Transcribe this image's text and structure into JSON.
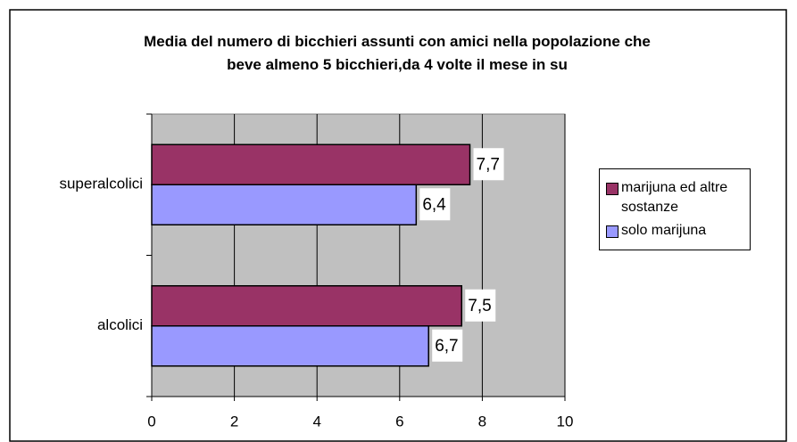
{
  "chart_data": {
    "type": "hbar",
    "title": "Media del numero di bicchieri assunti con amici nella popolazione che\nbeve almeno 5 bicchieri,da 4 volte il mese in su",
    "categories": [
      "superalcolici",
      "alcolici"
    ],
    "series": [
      {
        "name": "marijuna ed altre sostanze",
        "color": "#993366",
        "values": [
          7.7,
          7.5
        ],
        "value_labels": [
          "7,7",
          "7,5"
        ]
      },
      {
        "name": "solo marijuna",
        "color": "#9999ff",
        "values": [
          6.4,
          6.7
        ],
        "value_labels": [
          "6,4",
          "6,7"
        ]
      }
    ],
    "xlim": [
      0,
      10
    ],
    "xticks": [
      0,
      2,
      4,
      6,
      8,
      10
    ],
    "grid": true,
    "legend": "right"
  }
}
